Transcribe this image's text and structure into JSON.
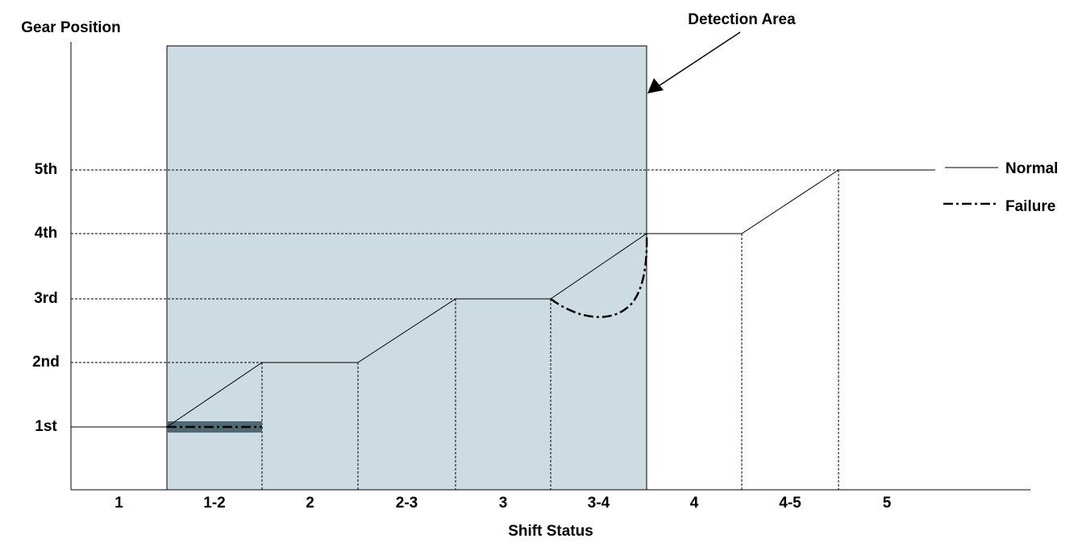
{
  "title": "Gear Position",
  "x_axis_label": "Shift Status",
  "y_labels": [
    "1st",
    "2nd",
    "3rd",
    "4th",
    "5th"
  ],
  "x_labels": [
    "1",
    "1-2",
    "2",
    "2-3",
    "3",
    "3-4",
    "4",
    "4-5",
    "5"
  ],
  "annotation": "Detection Area",
  "legend": [
    "Normal",
    "Failure"
  ]
}
